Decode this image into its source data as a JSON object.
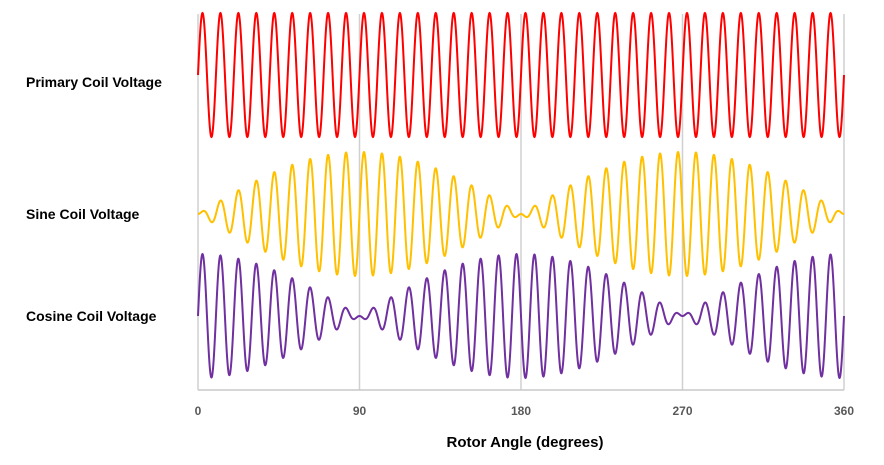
{
  "chart_data": {
    "type": "line",
    "title": "",
    "xlabel": "Rotor Angle (degrees)",
    "ylabel": "",
    "xlim": [
      0,
      360
    ],
    "xticks": [
      "0",
      "90",
      "180",
      "270",
      "360"
    ],
    "xtick_values": [
      0,
      90,
      180,
      270,
      360
    ],
    "grid": "vertical",
    "legend": "none",
    "carrier_cycles": 36,
    "series": [
      {
        "name": "Primary Coil Voltage",
        "color": "#ff0000",
        "envelope": "constant",
        "formula": "sin(36*theta)"
      },
      {
        "name": "Sine Coil Voltage",
        "color": "#ffc000",
        "envelope": "sin",
        "formula": "sin(theta)*sin(36*theta)"
      },
      {
        "name": "Cosine Coil Voltage",
        "color": "#7030a0",
        "envelope": "cos",
        "formula": "cos(theta)*sin(36*theta)"
      }
    ]
  }
}
